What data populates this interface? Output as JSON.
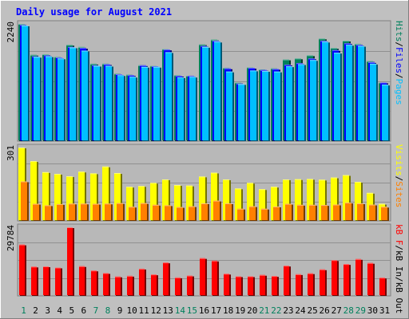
{
  "chart_data": [
    {
      "type": "bar",
      "title": "Daily usage for August 2021",
      "categories": [
        "1",
        "2",
        "3",
        "4",
        "5",
        "6",
        "7",
        "8",
        "9",
        "10",
        "11",
        "12",
        "13",
        "14",
        "15",
        "16",
        "17",
        "18",
        "19",
        "20",
        "21",
        "22",
        "23",
        "24",
        "25",
        "26",
        "27",
        "28",
        "29",
        "30",
        "31"
      ],
      "weekend_days": [
        "1",
        "7",
        "8",
        "14",
        "15",
        "21",
        "22",
        "28",
        "29"
      ],
      "y_tick": "2240",
      "ylim": [
        0,
        2240
      ],
      "right_labels": [
        "Hits",
        "Files",
        "Pages"
      ],
      "series": [
        {
          "name": "Hits",
          "color": "#00805c",
          "values": [
            2240,
            1650,
            1660,
            1610,
            1840,
            1800,
            1480,
            1480,
            1290,
            1270,
            1450,
            1440,
            1760,
            1260,
            1250,
            1850,
            1940,
            1400,
            1120,
            1410,
            1370,
            1390,
            1560,
            1580,
            1640,
            1960,
            1780,
            1920,
            1860,
            1530,
            1120
          ]
        },
        {
          "name": "Files",
          "color": "#0000ff",
          "values": [
            2220,
            1620,
            1640,
            1600,
            1800,
            1780,
            1450,
            1470,
            1280,
            1260,
            1450,
            1430,
            1750,
            1250,
            1250,
            1820,
            1920,
            1390,
            1100,
            1400,
            1360,
            1380,
            1460,
            1490,
            1580,
            1920,
            1740,
            1870,
            1840,
            1510,
            1120
          ]
        },
        {
          "name": "Pages",
          "color": "#00bfff",
          "values": [
            2210,
            1610,
            1620,
            1580,
            1790,
            1730,
            1440,
            1440,
            1260,
            1230,
            1420,
            1420,
            1700,
            1220,
            1230,
            1800,
            1900,
            1330,
            1090,
            1350,
            1340,
            1330,
            1430,
            1470,
            1550,
            1900,
            1690,
            1840,
            1820,
            1480,
            1080
          ]
        }
      ]
    },
    {
      "type": "bar",
      "y_tick": "301",
      "ylim": [
        0,
        301
      ],
      "right_labels": [
        "Visits",
        "Sites"
      ],
      "series": [
        {
          "name": "Visits",
          "color": "#ffff00",
          "values": [
            301,
            245,
            200,
            193,
            183,
            202,
            195,
            223,
            196,
            140,
            143,
            156,
            170,
            147,
            145,
            182,
            198,
            170,
            133,
            156,
            130,
            140,
            170,
            171,
            172,
            169,
            178,
            188,
            160,
            115,
            70
          ]
        },
        {
          "name": "Sites",
          "color": "#ff8000",
          "values": [
            162,
            70,
            64,
            69,
            71,
            71,
            70,
            71,
            73,
            58,
            73,
            66,
            64,
            57,
            60,
            72,
            83,
            72,
            50,
            60,
            50,
            59,
            70,
            66,
            66,
            65,
            67,
            75,
            72,
            67,
            58
          ]
        }
      ]
    },
    {
      "type": "bar",
      "y_tick": "29784",
      "ylim": [
        0,
        29784
      ],
      "right_labels": [
        "kB F",
        "kB In",
        "kB Out"
      ],
      "series": [
        {
          "name": "kB F",
          "color": "#ff0000",
          "values": [
            22300,
            12700,
            12800,
            12300,
            29784,
            12900,
            11000,
            9900,
            8400,
            8700,
            11800,
            9300,
            14500,
            8000,
            8800,
            16400,
            15300,
            9600,
            8500,
            8500,
            9100,
            8600,
            13100,
            9400,
            9800,
            11500,
            15500,
            13800,
            16000,
            14300,
            7900
          ]
        }
      ]
    }
  ]
}
